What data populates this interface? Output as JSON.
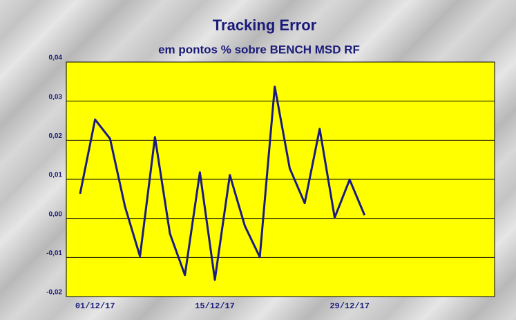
{
  "chart_data": {
    "type": "line",
    "title": "Tracking Error",
    "subtitle": "em pontos % sobre BENCH MSD RF",
    "categories": [
      null,
      "01/12/17",
      null,
      null,
      null,
      null,
      null,
      null,
      null,
      "15/12/17",
      null,
      null,
      null,
      null,
      null,
      null,
      null,
      null,
      "29/12/17",
      null
    ],
    "series": [
      {
        "name": "Tracking Error",
        "color": "#1a1a80",
        "values": [
          0.0063,
          0.0253,
          0.0204,
          0.003,
          -0.0097,
          0.0208,
          -0.0039,
          -0.0145,
          0.0118,
          -0.0157,
          0.0111,
          -0.0019,
          -0.0099,
          0.0337,
          0.0128,
          0.0039,
          0.0229,
          0.0002,
          0.0099,
          0.0008
        ]
      }
    ],
    "ylim": [
      -0.02,
      0.04
    ],
    "yticks": [
      {
        "value": -0.02,
        "label": "-0,02"
      },
      {
        "value": -0.01,
        "label": "-0,01"
      },
      {
        "value": 0,
        "label": "0,00"
      },
      {
        "value": 0.01,
        "label": "0,01"
      },
      {
        "value": 0.02,
        "label": "0,02"
      },
      {
        "value": 0.03,
        "label": "0,03"
      },
      {
        "value": 0.04,
        "label": "0,04"
      }
    ],
    "grid": true,
    "plot_color": "#ffff00"
  }
}
